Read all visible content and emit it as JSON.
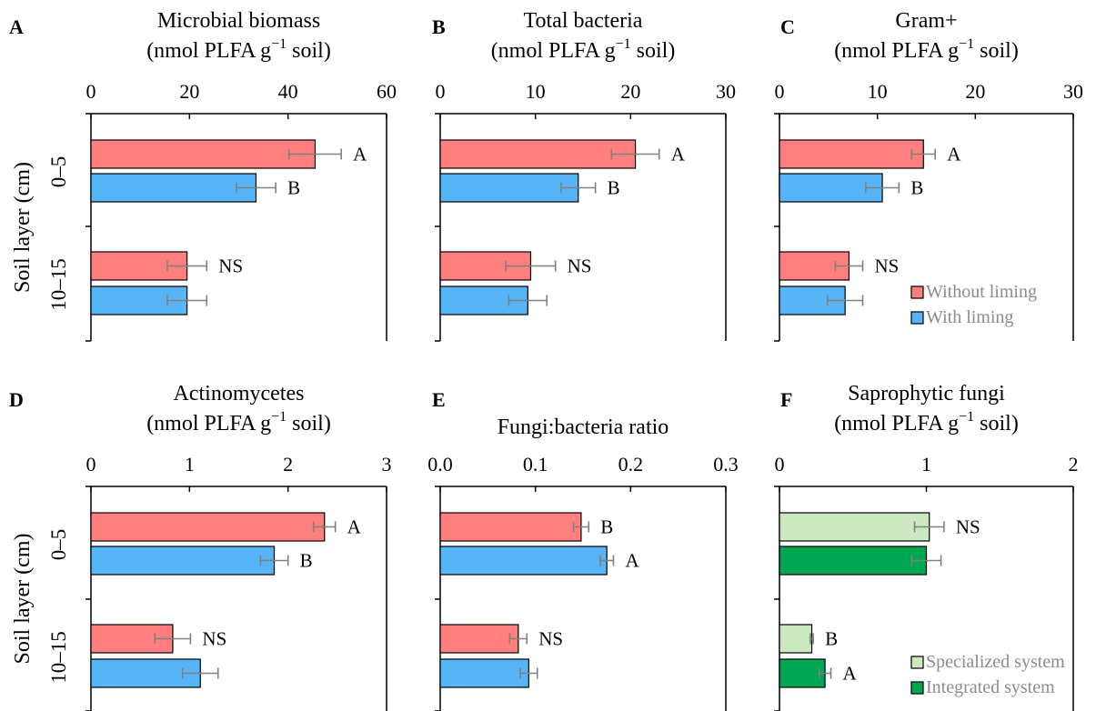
{
  "colors": {
    "without_liming": "#ff7f7f",
    "with_liming": "#56b4f7",
    "specialized": "#cce8c0",
    "integrated": "#00a651",
    "error_bar": "#808080",
    "legend_text": "#8c8c8c"
  },
  "ylabel": "Soil layer (cm)",
  "chart_data": [
    {
      "type": "bar",
      "orientation": "horizontal",
      "letter": "A",
      "title": [
        "Microbial biomass",
        "(nmol PLFA g",
        "−1",
        " soil)"
      ],
      "categories": [
        "0–5",
        "10–15"
      ],
      "xlim": [
        0,
        60
      ],
      "ticks": [
        "0",
        "20",
        "40",
        "60"
      ],
      "series": [
        {
          "name": "Without liming",
          "color_key": "without_liming",
          "values": [
            45.5,
            19.5
          ],
          "errors": [
            5.3,
            4.0
          ]
        },
        {
          "name": "With liming",
          "color_key": "with_liming",
          "values": [
            33.5,
            19.5
          ],
          "errors": [
            4.0,
            4.0
          ]
        }
      ],
      "labels": [
        [
          "A",
          "B"
        ],
        [
          "NS"
        ]
      ]
    },
    {
      "type": "bar",
      "orientation": "horizontal",
      "letter": "B",
      "title": [
        "Total bacteria",
        "(nmol PLFA g",
        "−1",
        " soil)"
      ],
      "categories": [
        "0–5",
        "10–15"
      ],
      "xlim": [
        0,
        30
      ],
      "ticks": [
        "0",
        "10",
        "20",
        "30"
      ],
      "series": [
        {
          "name": "Without liming",
          "color_key": "without_liming",
          "values": [
            20.5,
            9.5
          ],
          "errors": [
            2.5,
            2.6
          ]
        },
        {
          "name": "With liming",
          "color_key": "with_liming",
          "values": [
            14.5,
            9.2
          ],
          "errors": [
            1.8,
            2.0
          ]
        }
      ],
      "labels": [
        [
          "A",
          "B"
        ],
        [
          "NS"
        ]
      ]
    },
    {
      "type": "bar",
      "orientation": "horizontal",
      "letter": "C",
      "title": [
        "Gram+",
        "(nmol PLFA g",
        "−1",
        " soil)"
      ],
      "categories": [
        "0–5",
        "10–15"
      ],
      "xlim": [
        0,
        30
      ],
      "ticks": [
        "0",
        "10",
        "20",
        "30"
      ],
      "series": [
        {
          "name": "Without liming",
          "color_key": "without_liming",
          "values": [
            14.7,
            7.1
          ],
          "errors": [
            1.2,
            1.4
          ]
        },
        {
          "name": "With liming",
          "color_key": "with_liming",
          "values": [
            10.5,
            6.7
          ],
          "errors": [
            1.7,
            1.8
          ]
        }
      ],
      "labels": [
        [
          "A",
          "B"
        ],
        [
          "NS"
        ]
      ],
      "legend": {
        "position": "bottom-right",
        "entries": [
          "Without liming",
          "With liming"
        ],
        "color_keys": [
          "without_liming",
          "with_liming"
        ]
      }
    },
    {
      "type": "bar",
      "orientation": "horizontal",
      "letter": "D",
      "title": [
        "Actinomycetes",
        "(nmol PLFA g",
        "−1",
        " soil)"
      ],
      "categories": [
        "0–5",
        "10–15"
      ],
      "xlim": [
        0,
        3
      ],
      "ticks": [
        "0",
        "1",
        "2",
        "3"
      ],
      "series": [
        {
          "name": "Without liming",
          "color_key": "without_liming",
          "values": [
            2.37,
            0.83
          ],
          "errors": [
            0.11,
            0.18
          ]
        },
        {
          "name": "With liming",
          "color_key": "with_liming",
          "values": [
            1.86,
            1.11
          ],
          "errors": [
            0.14,
            0.18
          ]
        }
      ],
      "labels": [
        [
          "A",
          "B"
        ],
        [
          "NS"
        ]
      ]
    },
    {
      "type": "bar",
      "orientation": "horizontal",
      "letter": "E",
      "title": [
        "Fungi:bacteria ratio"
      ],
      "categories": [
        "0–5",
        "10–15"
      ],
      "xlim": [
        0,
        0.3
      ],
      "ticks": [
        "0.0",
        "0.1",
        "0.2",
        "0.3"
      ],
      "series": [
        {
          "name": "Without liming",
          "color_key": "without_liming",
          "values": [
            0.148,
            0.082
          ],
          "errors": [
            0.008,
            0.009
          ]
        },
        {
          "name": "With liming",
          "color_key": "with_liming",
          "values": [
            0.175,
            0.093
          ],
          "errors": [
            0.007,
            0.009
          ]
        }
      ],
      "labels": [
        [
          "B",
          "A"
        ],
        [
          "NS"
        ]
      ]
    },
    {
      "type": "bar",
      "orientation": "horizontal",
      "letter": "F",
      "title": [
        "Saprophytic fungi",
        "(nmol PLFA g",
        "−1",
        " soil)"
      ],
      "categories": [
        "0–5",
        "10–15"
      ],
      "xlim": [
        0,
        2
      ],
      "ticks": [
        "0",
        "1",
        "2"
      ],
      "series": [
        {
          "name": "Specialized system",
          "color_key": "specialized",
          "values": [
            1.02,
            0.22
          ],
          "errors": [
            0.1,
            0.01
          ]
        },
        {
          "name": "Integrated system",
          "color_key": "integrated",
          "values": [
            1.0,
            0.31
          ],
          "errors": [
            0.1,
            0.04
          ]
        }
      ],
      "labels": [
        [
          "NS"
        ],
        [
          "B",
          "A"
        ]
      ],
      "legend": {
        "position": "bottom-right",
        "entries": [
          "Specialized system",
          "Integrated system"
        ],
        "color_keys": [
          "specialized",
          "integrated"
        ]
      }
    }
  ]
}
